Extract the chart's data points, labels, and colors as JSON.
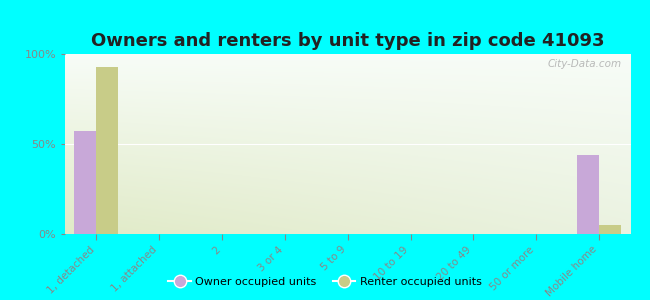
{
  "title": "Owners and renters by unit type in zip code 41093",
  "categories": [
    "1, detached",
    "1, attached",
    "2",
    "3 or 4",
    "5 to 9",
    "10 to 19",
    "20 to 49",
    "50 or more",
    "Mobile home"
  ],
  "owner_values": [
    57,
    0,
    0,
    0,
    0,
    0,
    0,
    0,
    44
  ],
  "renter_values": [
    93,
    0,
    0,
    0,
    0,
    0,
    0,
    0,
    5
  ],
  "owner_color": "#c8a8d8",
  "renter_color": "#c8cc88",
  "background_color": "#00ffff",
  "ylim": [
    0,
    100
  ],
  "yticks": [
    0,
    50,
    100
  ],
  "ytick_labels": [
    "0%",
    "50%",
    "100%"
  ],
  "bar_width": 0.35,
  "legend_owner": "Owner occupied units",
  "legend_renter": "Renter occupied units",
  "title_fontsize": 13,
  "watermark": "City-Data.com",
  "grid_color": "#d0d8b0",
  "tick_color": "#888888",
  "label_color": "#888888"
}
